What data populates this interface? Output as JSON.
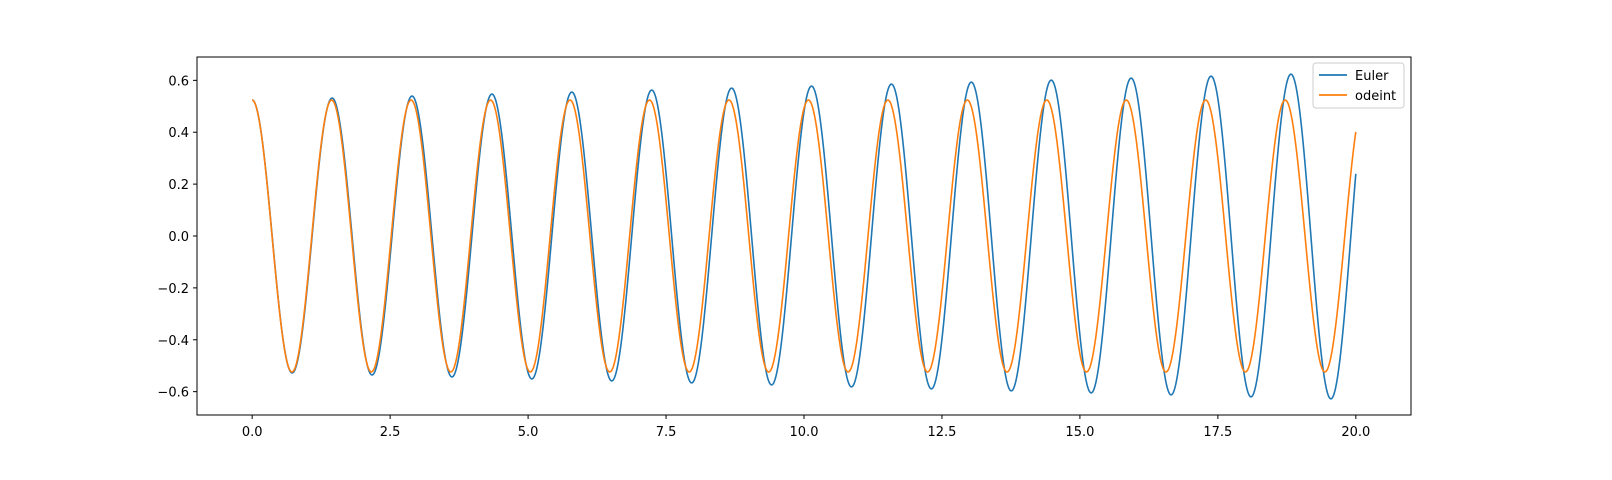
{
  "chart_data": {
    "type": "line",
    "title": "",
    "xlabel": "",
    "ylabel": "",
    "xlim": [
      -1.0,
      21.0
    ],
    "ylim": [
      -0.69,
      0.69
    ],
    "x_ticks": [
      0.0,
      2.5,
      5.0,
      7.5,
      10.0,
      12.5,
      15.0,
      17.5,
      20.0
    ],
    "x_tick_labels": [
      "0.0",
      "2.5",
      "5.0",
      "7.5",
      "10.0",
      "12.5",
      "15.0",
      "17.5",
      "20.0"
    ],
    "y_ticks": [
      -0.6,
      -0.4,
      -0.2,
      0.0,
      0.2,
      0.4,
      0.6
    ],
    "y_tick_labels": [
      "−0.6",
      "−0.4",
      "−0.2",
      "0.0",
      "0.2",
      "0.4",
      "0.6"
    ],
    "grid": false,
    "legend_position": "top-right",
    "x_range": [
      0.0,
      20.0
    ],
    "series": [
      {
        "name": "Euler",
        "color": "#1f77b4",
        "initial_value": 0.524,
        "period": 1.448,
        "amplitude_start": 0.524,
        "amplitude_growth_per_unit_time": 0.0053,
        "end_value": 0.22,
        "peaks": [
          [
            0.0,
            0.524
          ],
          [
            1.45,
            0.53
          ],
          [
            2.9,
            0.54
          ],
          [
            4.35,
            0.548
          ],
          [
            5.79,
            0.555
          ],
          [
            7.24,
            0.563
          ],
          [
            8.69,
            0.57
          ],
          [
            10.14,
            0.578
          ],
          [
            11.59,
            0.586
          ],
          [
            13.03,
            0.594
          ],
          [
            14.48,
            0.602
          ],
          [
            15.93,
            0.61
          ],
          [
            17.38,
            0.618
          ],
          [
            18.83,
            0.627
          ]
        ],
        "troughs": [
          [
            0.73,
            -0.527
          ],
          [
            2.17,
            -0.535
          ],
          [
            3.62,
            -0.543
          ],
          [
            5.07,
            -0.55
          ],
          [
            6.52,
            -0.558
          ],
          [
            7.96,
            -0.566
          ],
          [
            9.41,
            -0.574
          ],
          [
            10.86,
            -0.582
          ],
          [
            12.31,
            -0.59
          ],
          [
            13.76,
            -0.598
          ],
          [
            15.21,
            -0.606
          ],
          [
            16.65,
            -0.614
          ],
          [
            18.1,
            -0.622
          ],
          [
            19.55,
            -0.63
          ]
        ]
      },
      {
        "name": "odeint",
        "color": "#ff7f0e",
        "initial_value": 0.524,
        "period": 1.44,
        "amplitude": 0.524,
        "end_value": 0.33,
        "peaks": [
          [
            0.0,
            0.524
          ],
          [
            1.44,
            0.524
          ],
          [
            2.88,
            0.524
          ],
          [
            4.32,
            0.524
          ],
          [
            5.76,
            0.524
          ],
          [
            7.2,
            0.524
          ],
          [
            8.64,
            0.524
          ],
          [
            10.08,
            0.524
          ],
          [
            11.52,
            0.524
          ],
          [
            12.96,
            0.524
          ],
          [
            14.4,
            0.524
          ],
          [
            15.84,
            0.524
          ],
          [
            17.28,
            0.524
          ],
          [
            18.72,
            0.524
          ]
        ],
        "troughs": [
          [
            0.72,
            -0.524
          ],
          [
            2.16,
            -0.524
          ],
          [
            3.6,
            -0.524
          ],
          [
            5.04,
            -0.524
          ],
          [
            6.48,
            -0.524
          ],
          [
            7.92,
            -0.524
          ],
          [
            9.36,
            -0.524
          ],
          [
            10.8,
            -0.524
          ],
          [
            12.24,
            -0.524
          ],
          [
            13.68,
            -0.524
          ],
          [
            15.12,
            -0.524
          ],
          [
            16.56,
            -0.524
          ],
          [
            18.0,
            -0.524
          ],
          [
            19.44,
            -0.524
          ]
        ]
      }
    ]
  }
}
